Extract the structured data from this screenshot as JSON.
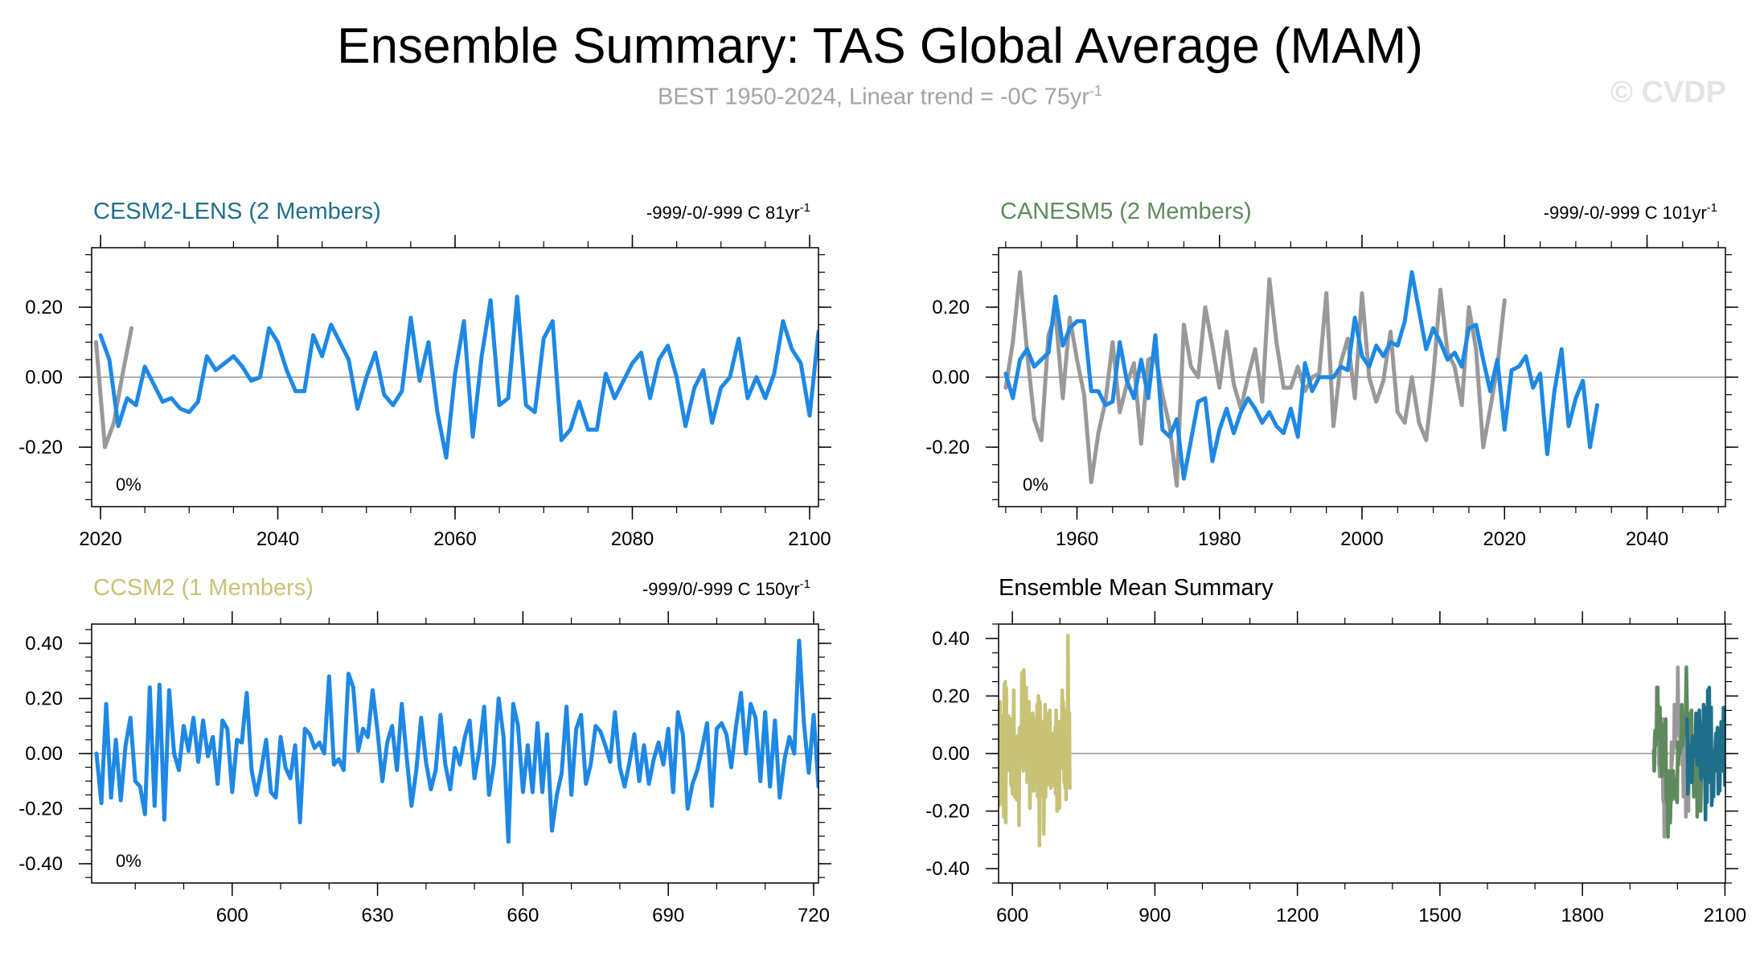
{
  "header": {
    "title": "Ensemble Summary: TAS Global Average (MAM)",
    "subtitle_text": "BEST 1950-2024, Linear trend = -0C 75yr",
    "subtitle_sup": "-1",
    "watermark": "© CVDP"
  },
  "chart_data": [
    {
      "type": "line",
      "title": "CESM2-LENS (2 Members)",
      "title_color": "#1f6f8b",
      "trend_label": "-999/-0/-999 C 81yr",
      "trend_sup": "-1",
      "pct_label": "0%",
      "xlim": [
        2019,
        2101
      ],
      "ylim": [
        -0.37,
        0.37
      ],
      "xticks": [
        2020,
        2040,
        2060,
        2080,
        2100
      ],
      "yticks": [
        -0.2,
        0.0,
        0.2
      ],
      "ytick_labels": [
        "-0.20",
        "0.00",
        "0.20"
      ],
      "series": [
        {
          "color": "#999999",
          "x_start": 2019.5,
          "values": [
            0.1,
            -0.2,
            -0.13,
            0.01,
            0.14
          ]
        },
        {
          "color": "#1e88e5",
          "x_start": 2020,
          "values": [
            0.12,
            0.05,
            -0.14,
            -0.06,
            -0.08,
            0.03,
            -0.02,
            -0.07,
            -0.06,
            -0.09,
            -0.1,
            -0.07,
            0.06,
            0.02,
            0.04,
            0.06,
            0.03,
            -0.01,
            0.0,
            0.14,
            0.1,
            0.02,
            -0.04,
            -0.04,
            0.12,
            0.06,
            0.15,
            0.1,
            0.05,
            -0.09,
            0.0,
            0.07,
            -0.05,
            -0.08,
            -0.04,
            0.17,
            -0.01,
            0.1,
            -0.1,
            -0.23,
            0.01,
            0.16,
            -0.17,
            0.06,
            0.22,
            -0.08,
            -0.06,
            0.23,
            -0.08,
            -0.1,
            0.11,
            0.16,
            -0.18,
            -0.15,
            -0.07,
            -0.15,
            -0.15,
            0.01,
            -0.06,
            -0.01,
            0.04,
            0.07,
            -0.06,
            0.05,
            0.09,
            0.0,
            -0.14,
            -0.03,
            0.02,
            -0.13,
            -0.03,
            0.0,
            0.11,
            -0.06,
            0.0,
            -0.06,
            0.01,
            0.16,
            0.08,
            0.04,
            -0.11,
            0.13
          ]
        }
      ]
    },
    {
      "type": "line",
      "title": "CANESM5 (2 Members)",
      "title_color": "#5e8a5e",
      "trend_label": "-999/-0/-999 C 101yr",
      "trend_sup": "-1",
      "pct_label": "0%",
      "xlim": [
        1949,
        2051
      ],
      "ylim": [
        -0.37,
        0.37
      ],
      "xticks": [
        1960,
        1980,
        2000,
        2020,
        2040
      ],
      "yticks": [
        -0.2,
        0.0,
        0.2
      ],
      "ytick_labels": [
        "-0.20",
        "0.00",
        "0.20"
      ],
      "series": [
        {
          "color": "#999999",
          "x_start": 1950,
          "values": [
            -0.03,
            0.1,
            0.3,
            0.07,
            -0.12,
            -0.18,
            0.12,
            0.18,
            -0.06,
            0.17,
            0.05,
            -0.05,
            -0.3,
            -0.16,
            -0.07,
            0.1,
            -0.1,
            -0.02,
            0.04,
            -0.19,
            0.05,
            0.06,
            -0.05,
            -0.14,
            -0.31,
            0.15,
            0.03,
            0.0,
            0.2,
            0.09,
            -0.03,
            0.13,
            -0.02,
            -0.09,
            0.0,
            0.08,
            -0.07,
            0.28,
            0.1,
            -0.03,
            -0.03,
            0.03,
            -0.04,
            0.0,
            0.01,
            0.24,
            -0.14,
            0.04,
            0.11,
            -0.06,
            0.24,
            0.0,
            -0.07,
            -0.01,
            0.13,
            -0.1,
            -0.13,
            0.0,
            -0.13,
            -0.18,
            0.0,
            0.25,
            0.07,
            0.03,
            -0.08,
            0.2,
            0.08,
            -0.2,
            -0.09,
            0.03,
            0.22
          ]
        },
        {
          "color": "#1e88e5",
          "x_start": 1950,
          "values": [
            0.01,
            -0.06,
            0.05,
            0.08,
            0.03,
            0.05,
            0.07,
            0.23,
            0.09,
            0.14,
            0.16,
            0.16,
            -0.04,
            -0.04,
            -0.08,
            -0.07,
            0.1,
            -0.01,
            -0.06,
            0.05,
            -0.06,
            0.12,
            -0.15,
            -0.17,
            -0.12,
            -0.29,
            -0.18,
            -0.07,
            -0.06,
            -0.24,
            -0.15,
            -0.09,
            -0.16,
            -0.1,
            -0.06,
            -0.09,
            -0.13,
            -0.1,
            -0.14,
            -0.16,
            -0.09,
            -0.17,
            0.04,
            -0.04,
            0.0,
            0.0,
            0.0,
            0.03,
            0.02,
            0.17,
            0.06,
            0.03,
            0.09,
            0.06,
            0.1,
            0.09,
            0.16,
            0.3,
            0.19,
            0.08,
            0.14,
            0.1,
            0.05,
            0.07,
            0.03,
            0.14,
            0.15,
            0.05,
            -0.04,
            0.05,
            -0.15,
            0.02,
            0.03,
            0.06,
            -0.03,
            0.01,
            -0.22,
            -0.04,
            0.08,
            -0.14,
            -0.06,
            -0.01,
            -0.2,
            -0.08
          ]
        }
      ]
    },
    {
      "type": "line",
      "title": "CCSM2 (1 Members)",
      "title_color": "#c8c277",
      "trend_label": "-999/0/-999 C 150yr",
      "trend_sup": "-1",
      "pct_label": "0%",
      "xlim": [
        571,
        721
      ],
      "ylim": [
        -0.47,
        0.47
      ],
      "xticks": [
        600,
        630,
        660,
        690,
        720
      ],
      "yticks": [
        -0.4,
        -0.2,
        0.0,
        0.2,
        0.4
      ],
      "ytick_labels": [
        "-0.40",
        "-0.20",
        "0.00",
        "0.20",
        "0.40"
      ],
      "series": [
        {
          "color": "#1e88e5",
          "x_start": 572,
          "values": [
            0.0,
            -0.18,
            0.18,
            -0.16,
            0.05,
            -0.17,
            0.03,
            0.13,
            -0.1,
            -0.12,
            -0.22,
            0.24,
            -0.19,
            0.25,
            -0.24,
            0.23,
            0.0,
            -0.06,
            0.1,
            0.01,
            0.13,
            -0.03,
            0.12,
            -0.01,
            0.06,
            -0.11,
            0.12,
            0.09,
            -0.14,
            0.05,
            0.04,
            0.22,
            -0.06,
            -0.15,
            -0.06,
            0.05,
            -0.14,
            -0.16,
            0.06,
            -0.05,
            -0.09,
            0.03,
            -0.25,
            0.09,
            0.07,
            0.02,
            0.04,
            0.0,
            0.28,
            -0.04,
            -0.02,
            -0.06,
            0.29,
            0.24,
            0.01,
            0.09,
            0.06,
            0.23,
            0.08,
            -0.1,
            0.04,
            0.1,
            -0.06,
            0.18,
            -0.01,
            -0.19,
            -0.06,
            0.13,
            -0.03,
            -0.13,
            -0.06,
            0.14,
            -0.04,
            -0.13,
            0.02,
            -0.04,
            0.06,
            0.12,
            -0.09,
            0.01,
            0.17,
            -0.15,
            -0.04,
            0.2,
            0.06,
            -0.32,
            0.18,
            0.1,
            -0.14,
            0.03,
            -0.14,
            0.11,
            -0.14,
            0.07,
            -0.28,
            -0.15,
            -0.07,
            0.17,
            -0.15,
            0.09,
            0.14,
            -0.11,
            -0.04,
            0.1,
            0.08,
            0.03,
            -0.03,
            0.15,
            -0.05,
            -0.12,
            -0.03,
            0.07,
            -0.1,
            0.03,
            -0.11,
            -0.02,
            0.04,
            -0.04,
            0.09,
            -0.14,
            0.15,
            0.07,
            -0.2,
            -0.11,
            -0.06,
            0.02,
            0.11,
            -0.19,
            0.09,
            0.11,
            0.07,
            -0.05,
            0.1,
            0.22,
            0.0,
            0.18,
            0.13,
            -0.1,
            0.15,
            -0.12,
            0.12,
            -0.16,
            -0.02,
            0.06,
            0.0,
            0.41,
            0.11,
            -0.07,
            0.14,
            -0.12
          ]
        }
      ]
    },
    {
      "type": "line",
      "title": "Ensemble Mean Summary",
      "title_color": "#000000",
      "xlim": [
        571,
        2101
      ],
      "ylim": [
        -0.45,
        0.45
      ],
      "xticks": [
        600,
        900,
        1200,
        1500,
        1800,
        2100
      ],
      "yticks": [
        -0.4,
        -0.2,
        0.0,
        0.2,
        0.4
      ],
      "ytick_labels": [
        "-0.40",
        "-0.20",
        "0.00",
        "0.20",
        "0.40"
      ],
      "series": [
        {
          "color": "#c8c277",
          "x_start": 572,
          "x_end": 721,
          "ref": 2
        },
        {
          "color": "#999999",
          "x_start": 1950,
          "x_end": 2024,
          "ref": 1
        },
        {
          "color": "#5e8a5e",
          "x_start": 1950,
          "x_end": 2050,
          "ref": 1
        },
        {
          "color": "#1f6f8b",
          "x_start": 2020,
          "x_end": 2101,
          "ref": 0
        }
      ]
    }
  ]
}
